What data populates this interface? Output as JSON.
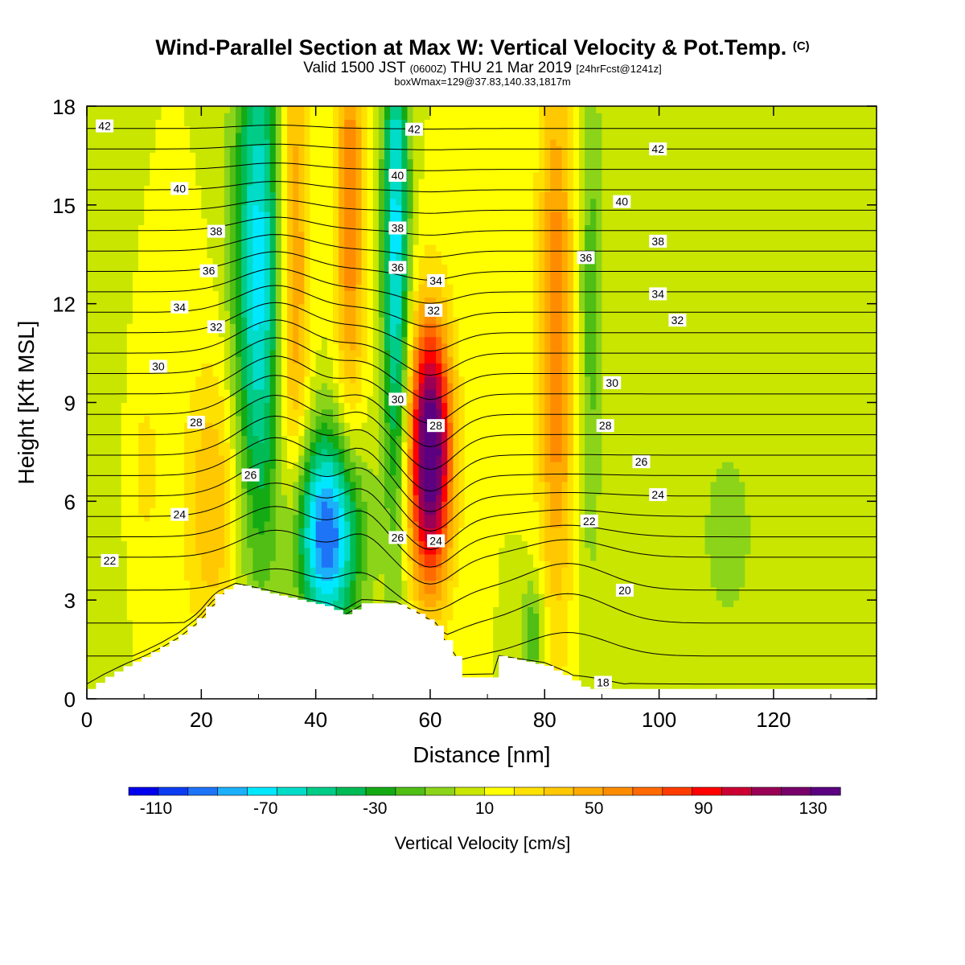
{
  "header": {
    "title": "Wind-Parallel Section at Max W: Vertical Velocity & Pot.Temp.",
    "title_mark": "(C)",
    "valid_prefix": "Valid 1500 JST",
    "valid_utc": "(0600Z)",
    "valid_date": "THU 21 Mar 2019",
    "forecast": "[24hrFcst@1241z]",
    "box_info": "boxWmax=129@37.83,140.33,1817m"
  },
  "chart_data": {
    "type": "heatmap",
    "xlabel": "Distance [nm]",
    "ylabel": "Height [Kft MSL]",
    "xlim": [
      0,
      138
    ],
    "ylim": [
      0,
      18
    ],
    "x_ticks": [
      0,
      20,
      40,
      60,
      80,
      100,
      120
    ],
    "y_ticks": [
      0,
      3,
      6,
      9,
      12,
      15,
      18
    ],
    "colorbar": {
      "label": "Vertical Velocity [cm/s]",
      "min": -120,
      "max": 140,
      "step": 10,
      "tick_labels": [
        "-110",
        "-70",
        "-30",
        "10",
        "50",
        "90",
        "130"
      ],
      "colors": [
        "#0000ee",
        "#0b3cf2",
        "#1e74f6",
        "#1cb0fa",
        "#00e8ff",
        "#00dcc8",
        "#00cc88",
        "#00bb55",
        "#14aa14",
        "#50be14",
        "#8cd41a",
        "#c8e600",
        "#ffff00",
        "#ffe100",
        "#ffc800",
        "#ffaa00",
        "#ff8c00",
        "#ff6a00",
        "#ff3c00",
        "#ff0000",
        "#cc0033",
        "#990055",
        "#77006a",
        "#5a0080"
      ]
    },
    "terrain_kft": [
      [
        0,
        0.3
      ],
      [
        3,
        0.65
      ],
      [
        6.5,
        1.0
      ],
      [
        10,
        1.3
      ],
      [
        13,
        1.6
      ],
      [
        16,
        1.95
      ],
      [
        19.5,
        2.5
      ],
      [
        22.5,
        3.2
      ],
      [
        26,
        3.5
      ],
      [
        32,
        3.2
      ],
      [
        42,
        2.8
      ],
      [
        45,
        2.55
      ],
      [
        48,
        2.9
      ],
      [
        54,
        2.9
      ],
      [
        58,
        2.55
      ],
      [
        61,
        2.2
      ],
      [
        64,
        1.3
      ],
      [
        65,
        0.65
      ],
      [
        71,
        0.65
      ],
      [
        72,
        1.3
      ],
      [
        80,
        1.0
      ],
      [
        84,
        0.65
      ],
      [
        87,
        0.3
      ],
      [
        138,
        0.3
      ]
    ],
    "w_features": [
      {
        "x": 30,
        "y": 13,
        "sx": 3.0,
        "sy": 6.0,
        "w": -75
      },
      {
        "x": 42,
        "y": 5,
        "sx": 4.0,
        "sy": 2.2,
        "w": -100
      },
      {
        "x": 54,
        "y": 14,
        "sx": 1.6,
        "sy": 6.0,
        "w": -75
      },
      {
        "x": 60,
        "y": 7.5,
        "sx": 2.6,
        "sy": 2.8,
        "w": 130
      },
      {
        "x": 36,
        "y": 13,
        "sx": 2.0,
        "sy": 6.0,
        "w": 45
      },
      {
        "x": 46,
        "y": 15,
        "sx": 1.8,
        "sy": 5.0,
        "w": 48
      },
      {
        "x": 82,
        "y": 11,
        "sx": 2.2,
        "sy": 6.0,
        "w": 50
      },
      {
        "x": 22,
        "y": 6,
        "sx": 3.5,
        "sy": 3.0,
        "w": 30
      },
      {
        "x": 88,
        "y": 12,
        "sx": 1.6,
        "sy": 6.0,
        "w": -25
      },
      {
        "x": 112,
        "y": 5,
        "sx": 4.0,
        "sy": 2.5,
        "w": -15
      },
      {
        "x": 78,
        "y": 2,
        "sx": 1.5,
        "sy": 1.2,
        "w": -30
      },
      {
        "x": 10,
        "y": 7,
        "sx": 3.0,
        "sy": 3.0,
        "w": 12
      },
      {
        "x": 4,
        "y": 8,
        "sx": 2.5,
        "sy": 10,
        "w": -8
      }
    ],
    "theta_contours": {
      "levels": [
        18,
        19,
        20,
        21,
        22,
        23,
        24,
        25,
        26,
        27,
        28,
        29,
        30,
        31,
        32,
        33,
        34,
        35,
        36,
        37,
        38,
        39,
        40,
        41,
        42,
        43
      ],
      "labels": [
        {
          "text": "42",
          "x": 3.1,
          "y": 17.4
        },
        {
          "text": "40",
          "x": 16.2,
          "y": 15.5
        },
        {
          "text": "38",
          "x": 22.6,
          "y": 14.2
        },
        {
          "text": "36",
          "x": 21.3,
          "y": 13.0
        },
        {
          "text": "34",
          "x": 16.2,
          "y": 11.9
        },
        {
          "text": "32",
          "x": 22.6,
          "y": 11.3
        },
        {
          "text": "30",
          "x": 12.5,
          "y": 10.1
        },
        {
          "text": "28",
          "x": 19.1,
          "y": 8.4
        },
        {
          "text": "26",
          "x": 28.6,
          "y": 6.8
        },
        {
          "text": "24",
          "x": 16.2,
          "y": 5.6
        },
        {
          "text": "22",
          "x": 4.0,
          "y": 4.2
        },
        {
          "text": "42",
          "x": 57.2,
          "y": 17.3
        },
        {
          "text": "40",
          "x": 54.3,
          "y": 15.9
        },
        {
          "text": "38",
          "x": 54.3,
          "y": 14.3
        },
        {
          "text": "36",
          "x": 54.3,
          "y": 13.1
        },
        {
          "text": "34",
          "x": 61.0,
          "y": 12.7
        },
        {
          "text": "32",
          "x": 60.6,
          "y": 11.8
        },
        {
          "text": "30",
          "x": 54.3,
          "y": 9.1
        },
        {
          "text": "28",
          "x": 61.0,
          "y": 8.3
        },
        {
          "text": "26",
          "x": 54.3,
          "y": 4.9
        },
        {
          "text": "24",
          "x": 61.0,
          "y": 4.8
        },
        {
          "text": "42",
          "x": 99.8,
          "y": 16.7
        },
        {
          "text": "40",
          "x": 93.5,
          "y": 15.1
        },
        {
          "text": "38",
          "x": 99.8,
          "y": 13.9
        },
        {
          "text": "36",
          "x": 87.2,
          "y": 13.4
        },
        {
          "text": "34",
          "x": 99.8,
          "y": 12.3
        },
        {
          "text": "32",
          "x": 103.2,
          "y": 11.5
        },
        {
          "text": "30",
          "x": 91.8,
          "y": 9.6
        },
        {
          "text": "28",
          "x": 90.6,
          "y": 8.3
        },
        {
          "text": "26",
          "x": 96.9,
          "y": 7.2
        },
        {
          "text": "24",
          "x": 99.8,
          "y": 6.2
        },
        {
          "text": "22",
          "x": 87.8,
          "y": 5.4
        },
        {
          "text": "20",
          "x": 94.0,
          "y": 3.3
        },
        {
          "text": "18",
          "x": 90.2,
          "y": 0.5
        }
      ]
    }
  }
}
